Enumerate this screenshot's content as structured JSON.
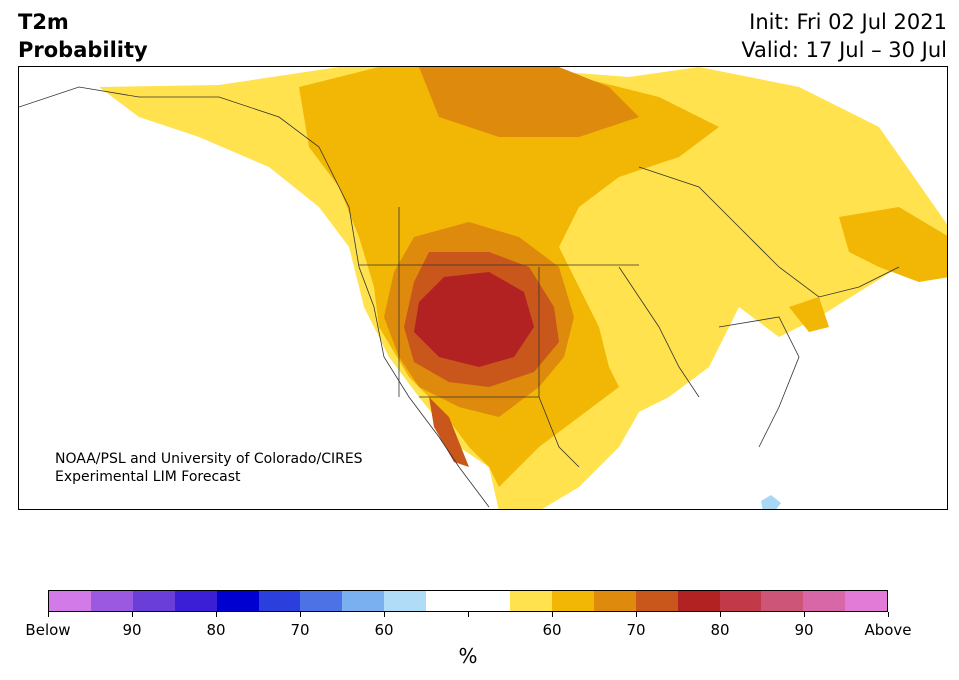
{
  "header": {
    "variable": "T2m",
    "subtitle": "Probability",
    "init": "Init: Fri 02 Jul 2021",
    "valid": "Valid: 17 Jul – 30 Jul"
  },
  "credit": {
    "line1": "NOAA/PSL and University of Colorado/CIRES",
    "line2": "Experimental LIM Forecast"
  },
  "colorbar": {
    "colors": [
      "#d17ae8",
      "#9a59e0",
      "#6a3fd9",
      "#3a1fd6",
      "#0000d0",
      "#2a3fdc",
      "#4d72e6",
      "#7ab0f0",
      "#b0dcf7",
      "#ffffff",
      "#ffffff",
      "#ffe24d",
      "#f2b705",
      "#de8a0c",
      "#c9561a",
      "#b22222",
      "#c23a4a",
      "#cc5578",
      "#d867a8",
      "#e27ad8"
    ],
    "labels": [
      "Below",
      "90",
      "80",
      "70",
      "60",
      "",
      "60",
      "70",
      "80",
      "90",
      "Above"
    ],
    "unit": "%"
  },
  "map": {
    "background": "#ffffff",
    "prob_colors": {
      "above_55": "#ffe24d",
      "above_60": "#f2b705",
      "above_70": "#de8a0c",
      "above_75": "#c9561a",
      "above_80": "#b22222",
      "below_55": "#a8d8f5"
    }
  }
}
